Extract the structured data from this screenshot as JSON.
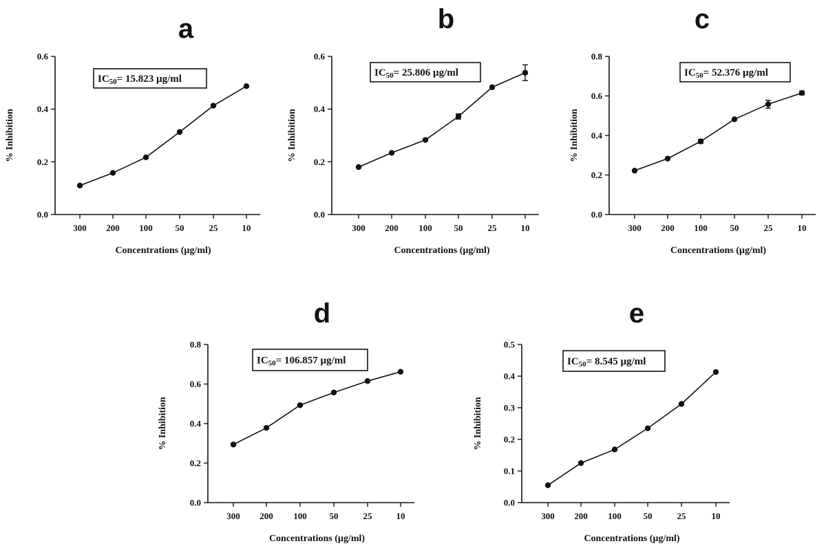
{
  "chart_data": [
    {
      "panel": "a",
      "type": "line",
      "categories": [
        "300",
        "200",
        "100",
        "50",
        "25",
        "10"
      ],
      "values": [
        0.11,
        0.158,
        0.217,
        0.313,
        0.413,
        0.487
      ],
      "errors": [
        0,
        0,
        0,
        0,
        0,
        0
      ],
      "xlabel": "Concentrations (µg/ml)",
      "ylabel": "% Inhibition",
      "ylim": [
        0,
        0.6
      ],
      "yticks": [
        "0.0",
        "0.2",
        "0.4",
        "0.6"
      ],
      "annotation": {
        "prefix": "IC",
        "sub": "50",
        "suffix": "= 15.823 µg/ml"
      }
    },
    {
      "panel": "b",
      "type": "line",
      "categories": [
        "300",
        "200",
        "100",
        "50",
        "25",
        "10"
      ],
      "values": [
        0.18,
        0.234,
        0.283,
        0.372,
        0.483,
        0.538
      ],
      "errors": [
        0,
        0,
        0,
        0.01,
        0,
        0.03
      ],
      "xlabel": "Concentrations (µg/ml)",
      "ylabel": "% Inhibition",
      "ylim": [
        0,
        0.6
      ],
      "yticks": [
        "0.0",
        "0.2",
        "0.4",
        "0.6"
      ],
      "annotation": {
        "prefix": "IC",
        "sub": "50",
        "suffix": "= 25.806 µg/ml"
      }
    },
    {
      "panel": "c",
      "type": "line",
      "categories": [
        "300",
        "200",
        "100",
        "50",
        "25",
        "10"
      ],
      "values": [
        0.222,
        0.283,
        0.37,
        0.482,
        0.558,
        0.615
      ],
      "errors": [
        0,
        0,
        0.01,
        0,
        0.02,
        0.01
      ],
      "xlabel": "Concentrations (µg/ml)",
      "ylabel": "% Inhibition",
      "ylim": [
        0,
        0.8
      ],
      "yticks": [
        "0.0",
        "0.2",
        "0.4",
        "0.6",
        "0.8"
      ],
      "annotation": {
        "prefix": "IC",
        "sub": "50",
        "suffix": "= 52.376 µg/ml"
      }
    },
    {
      "panel": "d",
      "type": "line",
      "categories": [
        "300",
        "200",
        "100",
        "50",
        "25",
        "10"
      ],
      "values": [
        0.294,
        0.378,
        0.493,
        0.557,
        0.615,
        0.662
      ],
      "errors": [
        0,
        0,
        0,
        0,
        0,
        0
      ],
      "xlabel": "Concentrations (µg/ml)",
      "ylabel": "% Inhibition",
      "ylim": [
        0,
        0.8
      ],
      "yticks": [
        "0.0",
        "0.2",
        "0.4",
        "0.6",
        "0.8"
      ],
      "annotation": {
        "prefix": "IC",
        "sub": "50",
        "suffix": "= 106.857 µg/ml"
      }
    },
    {
      "panel": "e",
      "type": "line",
      "categories": [
        "300",
        "200",
        "100",
        "50",
        "25",
        "10"
      ],
      "values": [
        0.055,
        0.125,
        0.168,
        0.235,
        0.312,
        0.413
      ],
      "errors": [
        0,
        0,
        0,
        0,
        0,
        0
      ],
      "xlabel": "Concentrations (µg/ml)",
      "ylabel": "% Inhibition",
      "ylim": [
        0,
        0.5
      ],
      "yticks": [
        "0.0",
        "0.1",
        "0.2",
        "0.3",
        "0.4",
        "0.5"
      ],
      "annotation": {
        "prefix": "IC",
        "sub": "50",
        "suffix": "= 8.545 µg/ml"
      }
    }
  ],
  "colors": {
    "ink": "#111111",
    "background": "#ffffff"
  }
}
